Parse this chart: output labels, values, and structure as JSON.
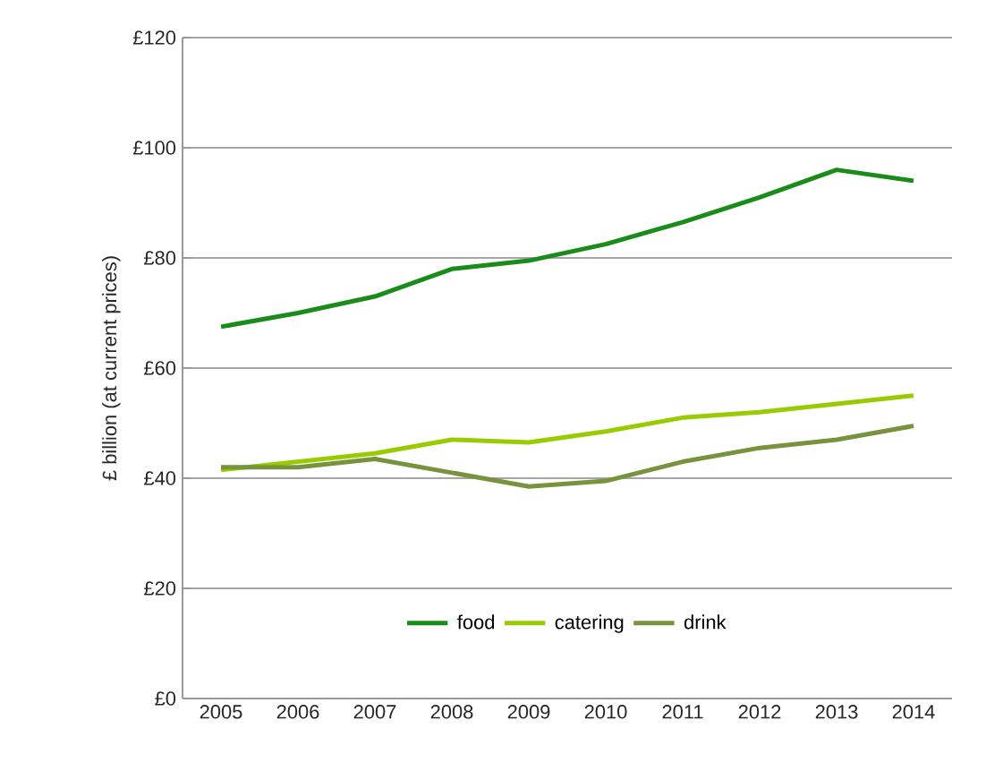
{
  "chart_data": {
    "type": "line",
    "ylabel": "£ billion  (at current prices)",
    "categories": [
      "2005",
      "2006",
      "2007",
      "2008",
      "2009",
      "2010",
      "2011",
      "2012",
      "2013",
      "2014"
    ],
    "series": [
      {
        "name": "food",
        "color": "#1a8c1a",
        "values": [
          67.5,
          70,
          73,
          78,
          79.5,
          82.5,
          86.5,
          91,
          96,
          94
        ]
      },
      {
        "name": "catering",
        "color": "#99cc00",
        "values": [
          41.5,
          43,
          44.5,
          47,
          46.5,
          48.5,
          51,
          52,
          53.5,
          55
        ]
      },
      {
        "name": "drink",
        "color": "#77933c",
        "values": [
          42,
          42,
          43.5,
          41,
          38.5,
          39.5,
          43,
          45.5,
          47,
          49.5
        ]
      }
    ],
    "ylim": [
      0,
      120
    ],
    "yticks": [
      {
        "value": 0,
        "label": "£0"
      },
      {
        "value": 20,
        "label": "£20"
      },
      {
        "value": 40,
        "label": "£40"
      },
      {
        "value": 60,
        "label": "£60"
      },
      {
        "value": 80,
        "label": "£80"
      },
      {
        "value": 100,
        "label": "£100"
      },
      {
        "value": 120,
        "label": "£120"
      }
    ],
    "grid": "y",
    "legend": "bottom",
    "marker": "none",
    "line_style": "solid"
  }
}
